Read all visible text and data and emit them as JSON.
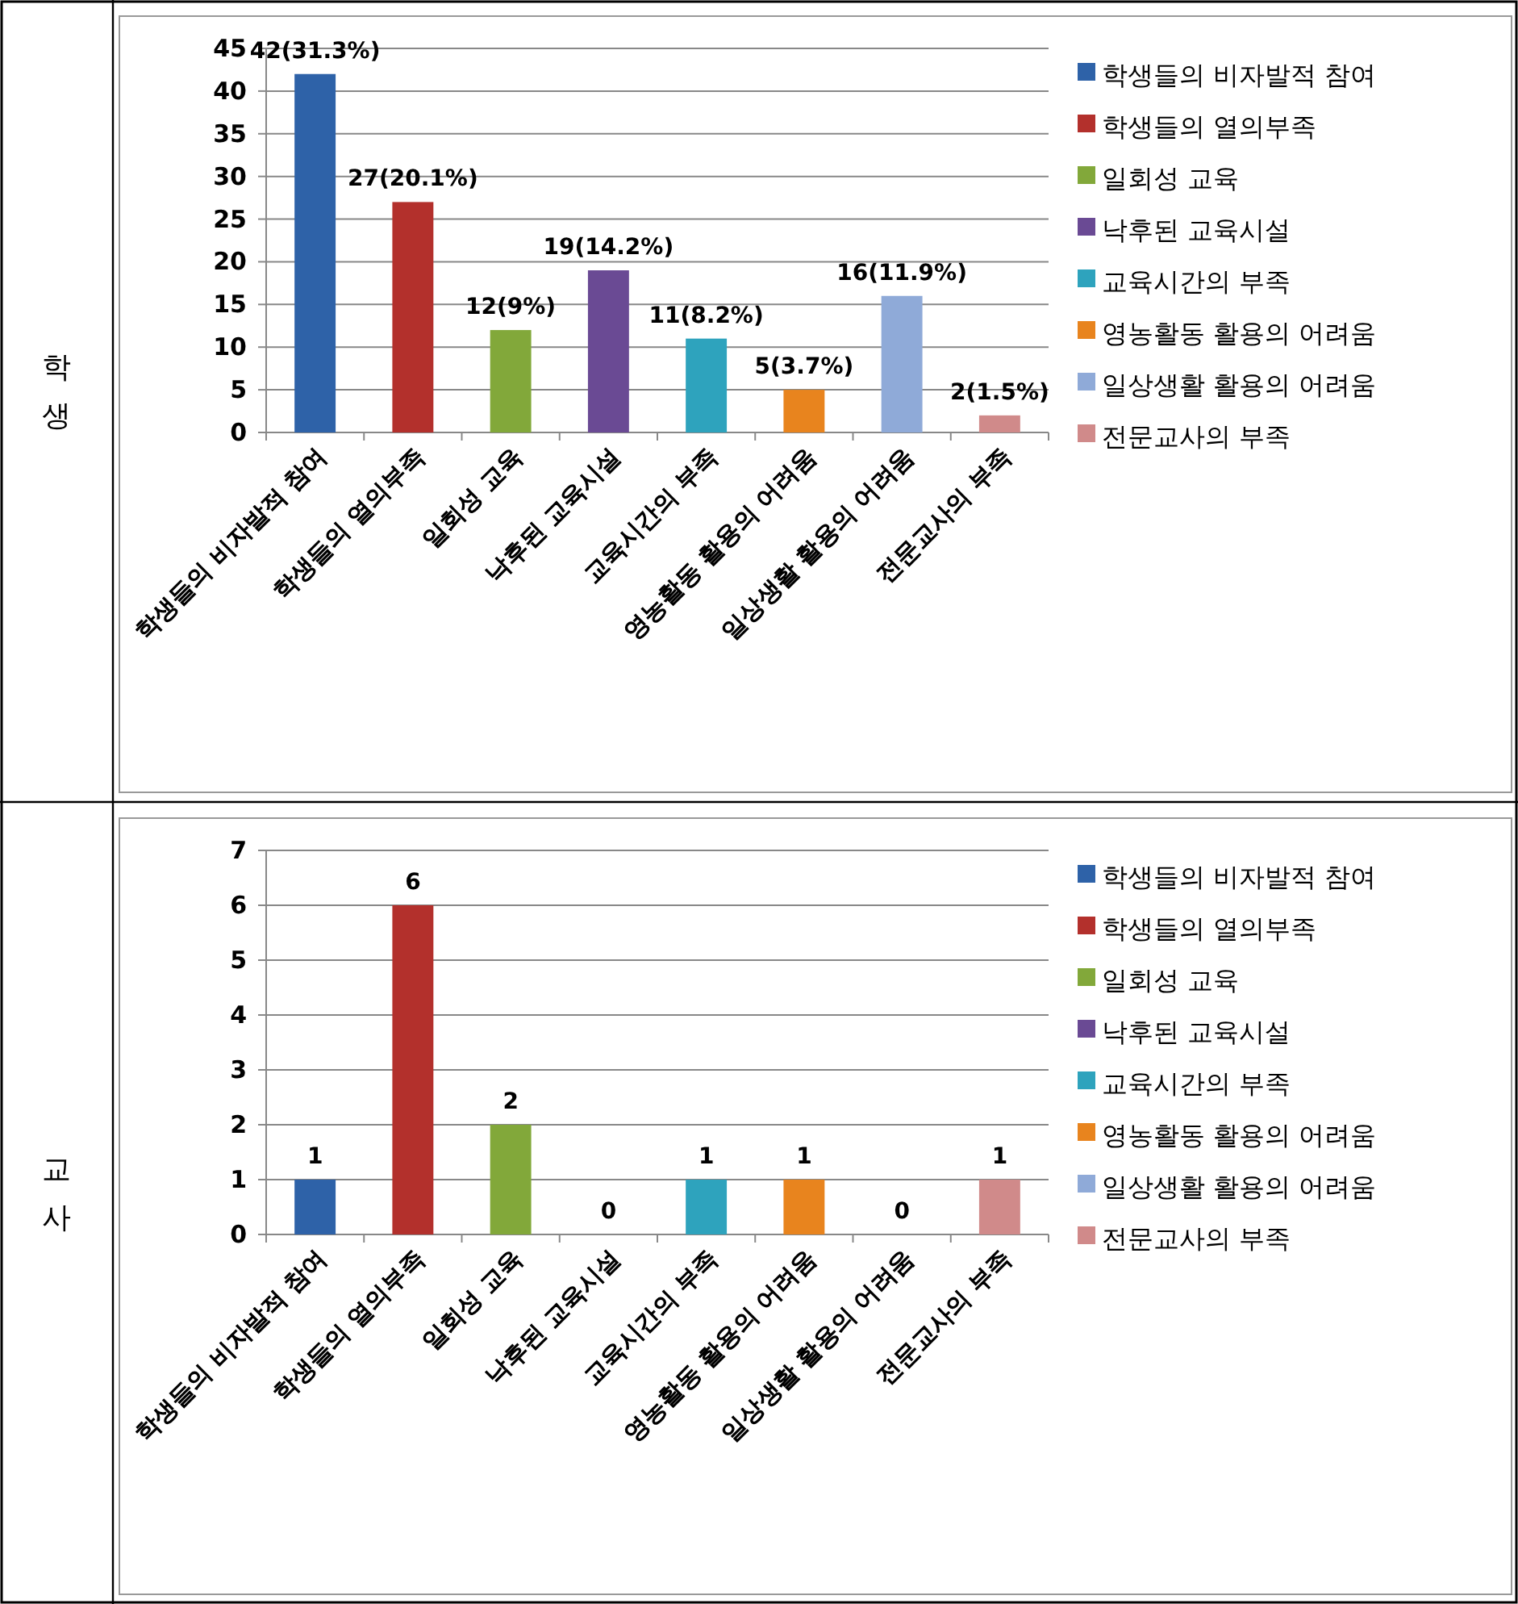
{
  "chart_data": [
    {
      "type": "bar",
      "ylabel": "학생",
      "categories": [
        "학생들의 비자발적 참여",
        "학생들의 열의부족",
        "일회성 교육",
        "낙후된 교육시설",
        "교육시간의 부족",
        "영농활동 활용의 어려움",
        "일상생활 활용의 어려움",
        "전문교사의 부족"
      ],
      "series": [
        {
          "name": "학생들의 비자발적 참여",
          "color": "#2e62a8",
          "values": [
            42,
            null,
            null,
            null,
            null,
            null,
            null,
            null
          ],
          "value_labels": [
            "42(31.3%)",
            null,
            null,
            null,
            null,
            null,
            null,
            null
          ]
        },
        {
          "name": "학생들의 열의부족",
          "color": "#b3302c",
          "values": [
            null,
            27,
            null,
            null,
            null,
            null,
            null,
            null
          ],
          "value_labels": [
            null,
            "27(20.1%)",
            null,
            null,
            null,
            null,
            null,
            null
          ]
        },
        {
          "name": "일회성 교육",
          "color": "#82a83a",
          "values": [
            null,
            null,
            12,
            null,
            null,
            null,
            null,
            null
          ],
          "value_labels": [
            null,
            null,
            "12(9%)",
            null,
            null,
            null,
            null,
            null
          ]
        },
        {
          "name": "낙후된 교육시설",
          "color": "#6a4a94",
          "values": [
            null,
            null,
            null,
            19,
            null,
            null,
            null,
            null
          ],
          "value_labels": [
            null,
            null,
            null,
            "19(14.2%)",
            null,
            null,
            null,
            null
          ]
        },
        {
          "name": "교육시간의 부족",
          "color": "#2ea3bd",
          "values": [
            null,
            null,
            null,
            null,
            11,
            null,
            null,
            null
          ],
          "value_labels": [
            null,
            null,
            null,
            null,
            "11(8.2%)",
            null,
            null,
            null
          ]
        },
        {
          "name": "영농활동 활용의 어려움",
          "color": "#e8841e",
          "values": [
            null,
            null,
            null,
            null,
            null,
            5,
            null,
            null
          ],
          "value_labels": [
            null,
            null,
            null,
            null,
            null,
            "5(3.7%)",
            null,
            null
          ]
        },
        {
          "name": "일상생활 활용의 어려움",
          "color": "#8faad8",
          "values": [
            null,
            null,
            null,
            null,
            null,
            null,
            16,
            null
          ],
          "value_labels": [
            null,
            null,
            null,
            null,
            null,
            null,
            "16(11.9%)",
            null
          ]
        },
        {
          "name": "전문교사의 부족",
          "color": "#d08a8a",
          "values": [
            null,
            null,
            null,
            null,
            null,
            null,
            null,
            2
          ],
          "value_labels": [
            null,
            null,
            null,
            null,
            null,
            null,
            null,
            "2(1.5%)"
          ]
        }
      ],
      "ylim": [
        0,
        45
      ],
      "yticks": [
        0,
        5,
        10,
        15,
        20,
        25,
        30,
        35,
        40,
        45
      ],
      "grid": "y",
      "legend": "right"
    },
    {
      "type": "bar",
      "ylabel": "교사",
      "categories": [
        "학생들의 비자발적 참여",
        "학생들의 열의부족",
        "일회성 교육",
        "낙후된 교육시설",
        "교육시간의 부족",
        "영농활동 활용의 어려움",
        "일상생활 활용의 어려움",
        "전문교사의 부족"
      ],
      "series": [
        {
          "name": "학생들의 비자발적 참여",
          "color": "#2e62a8",
          "values": [
            1,
            null,
            null,
            null,
            null,
            null,
            null,
            null
          ]
        },
        {
          "name": "학생들의 열의부족",
          "color": "#b3302c",
          "values": [
            null,
            6,
            null,
            null,
            null,
            null,
            null,
            null
          ]
        },
        {
          "name": "일회성 교육",
          "color": "#82a83a",
          "values": [
            null,
            null,
            2,
            null,
            null,
            null,
            null,
            null
          ]
        },
        {
          "name": "낙후된 교육시설",
          "color": "#6a4a94",
          "values": [
            null,
            null,
            null,
            0,
            null,
            null,
            null,
            null
          ]
        },
        {
          "name": "교육시간의 부족",
          "color": "#2ea3bd",
          "values": [
            null,
            null,
            null,
            null,
            1,
            null,
            null,
            null
          ]
        },
        {
          "name": "영농활동 활용의 어려움",
          "color": "#e8841e",
          "values": [
            null,
            null,
            null,
            null,
            null,
            1,
            null,
            null
          ]
        },
        {
          "name": "일상생활 활용의 어려움",
          "color": "#8faad8",
          "values": [
            null,
            null,
            null,
            null,
            null,
            null,
            0,
            null
          ]
        },
        {
          "name": "전문교사의 부족",
          "color": "#d08a8a",
          "values": [
            null,
            null,
            null,
            null,
            null,
            null,
            null,
            1
          ]
        }
      ],
      "ylim": [
        0,
        7
      ],
      "yticks": [
        0,
        1,
        2,
        3,
        4,
        5,
        6,
        7
      ],
      "grid": "y",
      "data_labels": true,
      "legend": "right"
    }
  ]
}
